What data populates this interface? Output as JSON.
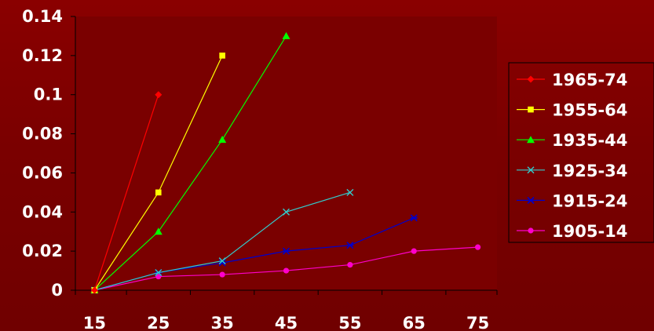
{
  "chart_data": {
    "type": "line",
    "title": "",
    "xlabel": "",
    "ylabel": "",
    "x_ticks": [
      "15",
      "25",
      "35",
      "45",
      "55",
      "65",
      "75"
    ],
    "y_ticks": [
      "0",
      "0.02",
      "0.04",
      "0.06",
      "0.08",
      "0.1",
      "0.12",
      "0.14"
    ],
    "xlim": [
      12,
      78
    ],
    "ylim": [
      0,
      0.14
    ],
    "grid": false,
    "legend_position": "right",
    "series": [
      {
        "name": "1965-74",
        "color": "#ff0000",
        "marker": "diamond",
        "x": [
          15,
          25
        ],
        "y": [
          0,
          0.1
        ]
      },
      {
        "name": "1955-64",
        "color": "#ffff00",
        "marker": "square",
        "x": [
          15,
          25,
          35
        ],
        "y": [
          0,
          0.05,
          0.12
        ]
      },
      {
        "name": "1935-44",
        "color": "#00ff00",
        "marker": "triangle",
        "x": [
          15,
          25,
          35,
          45
        ],
        "y": [
          0,
          0.03,
          0.077,
          0.13
        ]
      },
      {
        "name": "1925-34",
        "color": "#33cccc",
        "marker": "x",
        "x": [
          15,
          25,
          35,
          45,
          55
        ],
        "y": [
          0,
          0.009,
          0.015,
          0.04,
          0.05
        ]
      },
      {
        "name": "1915-24",
        "color": "#0000cc",
        "marker": "asterisk",
        "x": [
          15,
          25,
          35,
          45,
          55,
          65
        ],
        "y": [
          0,
          0.009,
          0.014,
          0.02,
          0.023,
          0.037
        ]
      },
      {
        "name": "1905-14",
        "color": "#ff00cc",
        "marker": "circle",
        "x": [
          15,
          25,
          35,
          45,
          55,
          65,
          75
        ],
        "y": [
          0,
          0.007,
          0.008,
          0.01,
          0.013,
          0.02,
          0.022
        ]
      }
    ]
  }
}
